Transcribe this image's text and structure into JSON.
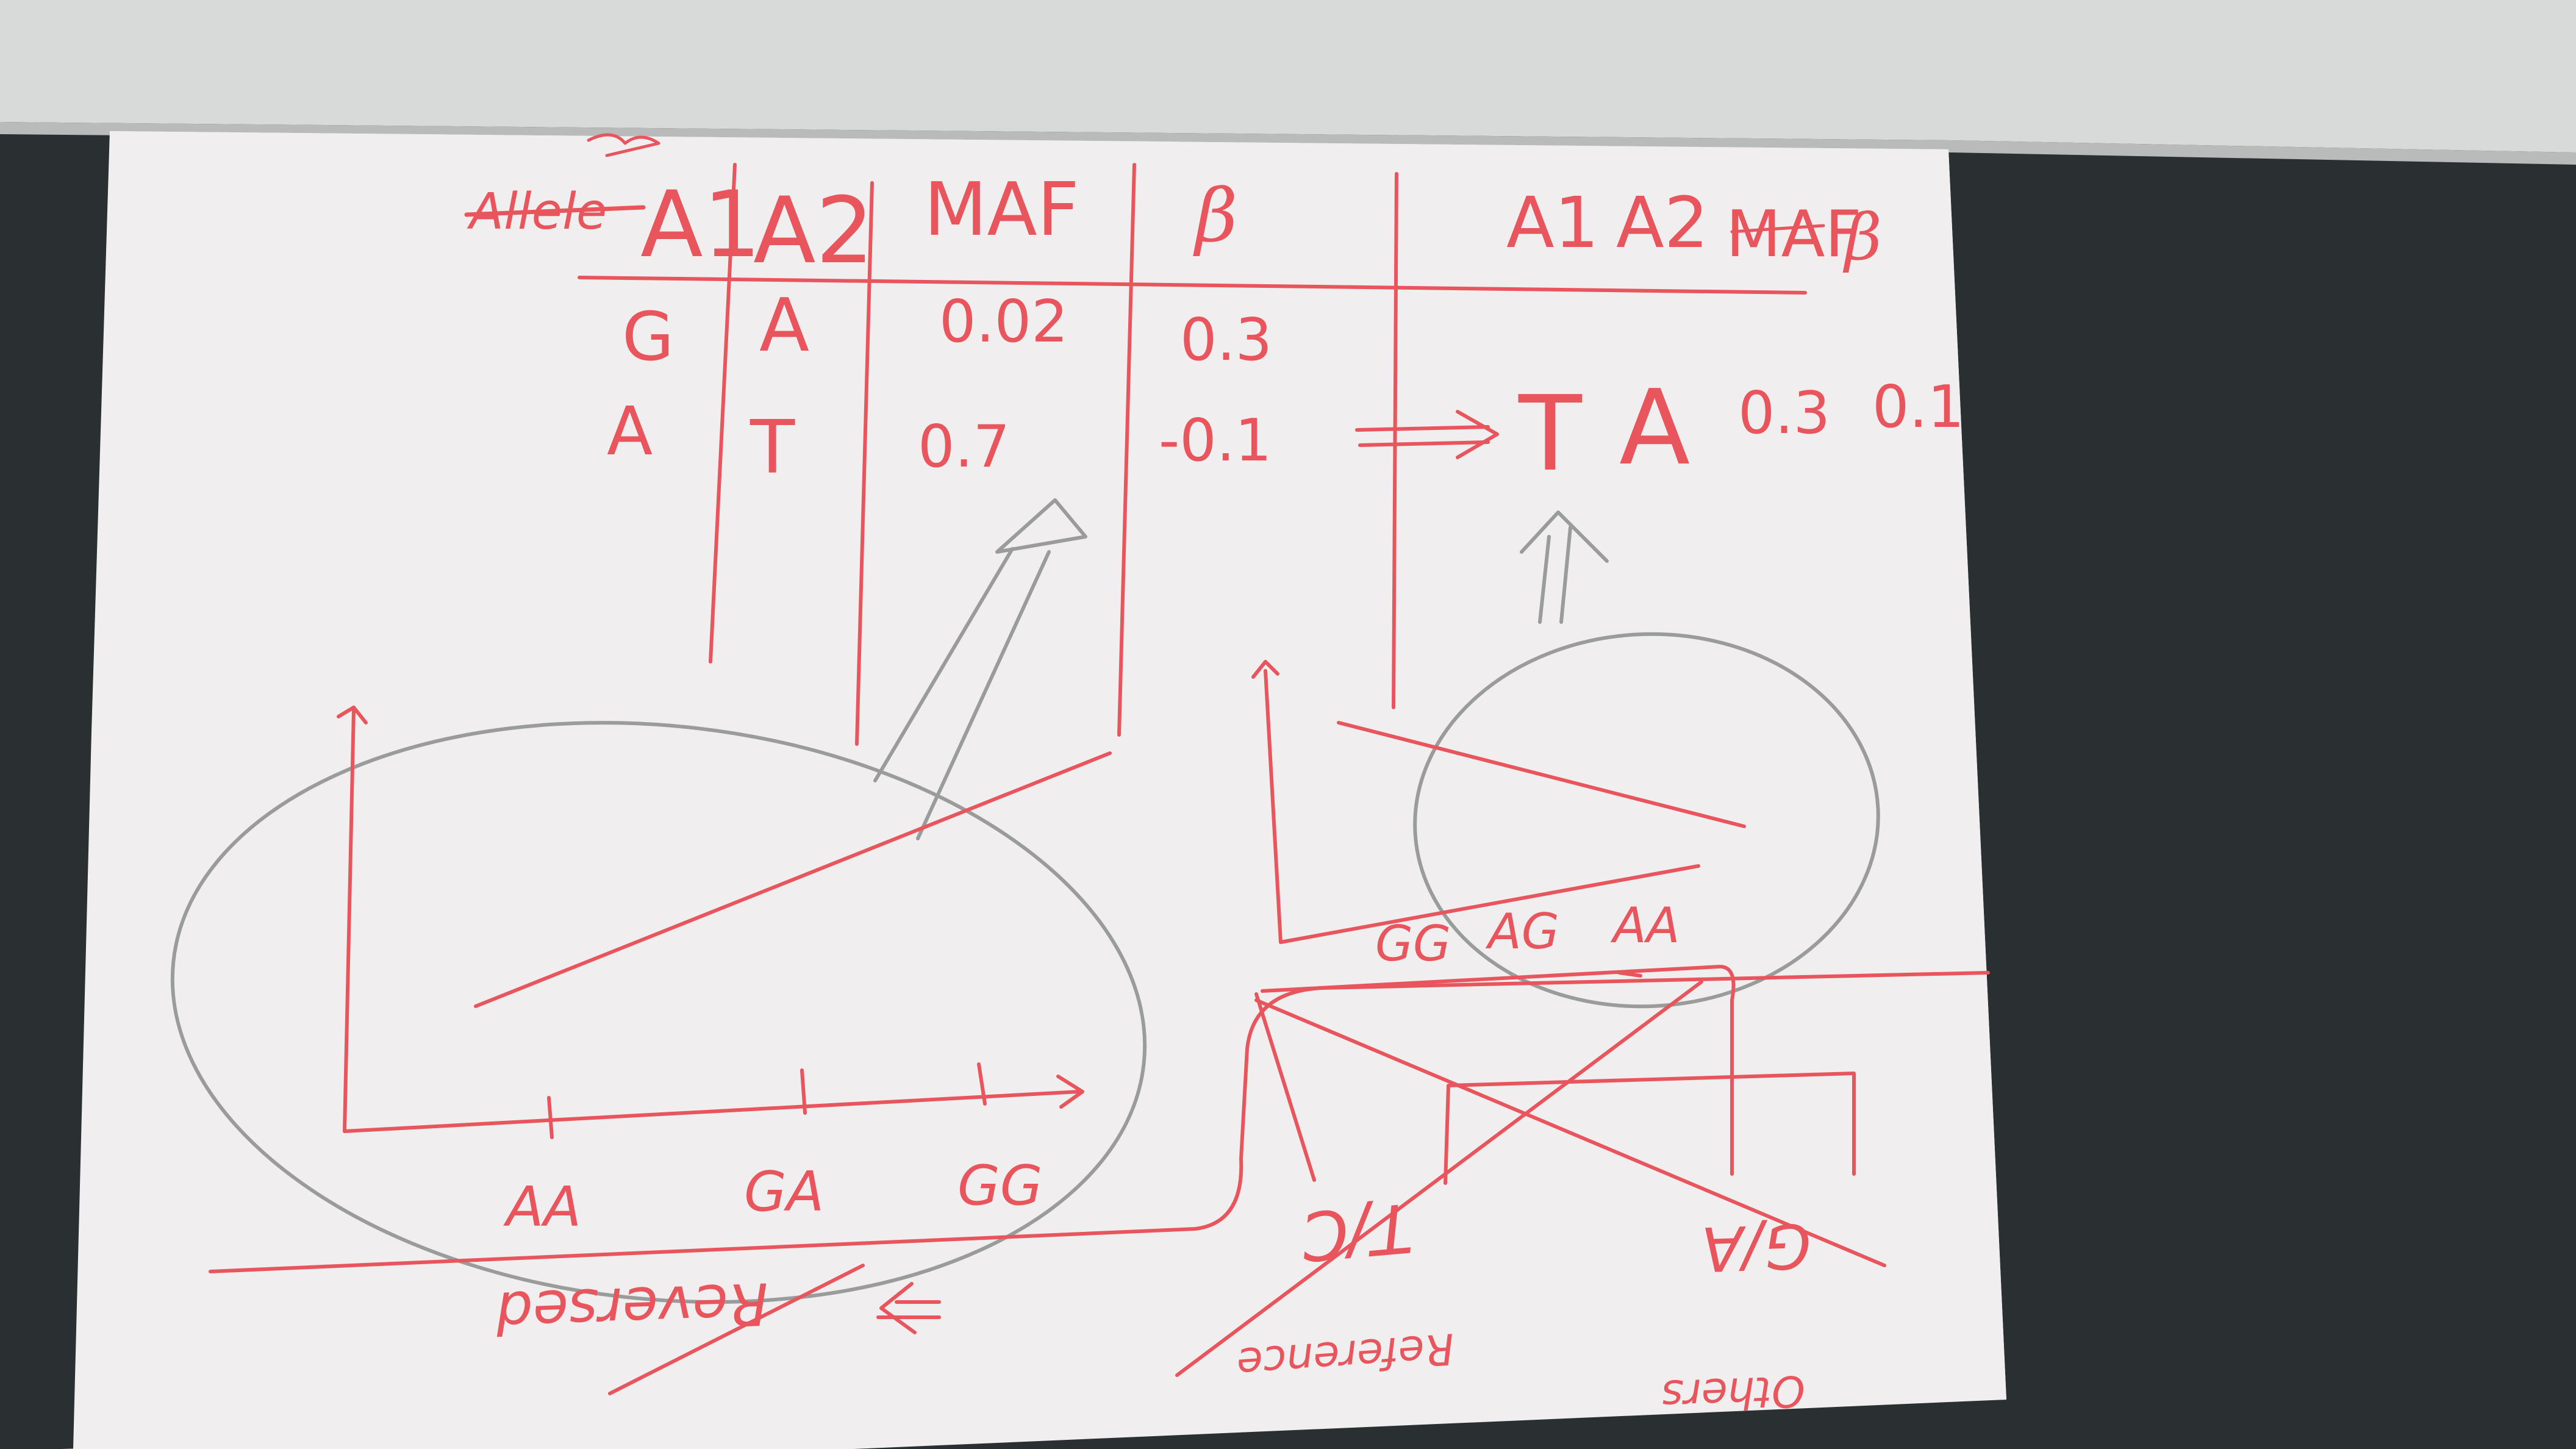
{
  "colors": {
    "desk": "#2a2f31",
    "paper": "#f2f0ef",
    "ink": "#e8555d",
    "pencil": "#9a9c9c"
  },
  "table": {
    "struck_header": "Allele",
    "headers": [
      "A1",
      "A2",
      "MAF",
      "β"
    ],
    "rows": [
      [
        "G",
        "A",
        "0.02",
        "0.3"
      ],
      [
        "A",
        "T",
        "0.7",
        "-0.1"
      ]
    ]
  },
  "flipped_table": {
    "headers": [
      "A1",
      "A2",
      "MAF",
      "β"
    ],
    "row": [
      "T",
      "A",
      "0.3",
      "0.1"
    ]
  },
  "left_plot": {
    "ticks": [
      "AA",
      "GA",
      "GG"
    ]
  },
  "right_plot": {
    "ticks": [
      "GG",
      "AG",
      "AA"
    ]
  },
  "bottom_notes": {
    "struck_word": "Reversed",
    "strand_left": "T/C",
    "strand_right": "G/A",
    "reference": "Reference",
    "others": "Others"
  }
}
